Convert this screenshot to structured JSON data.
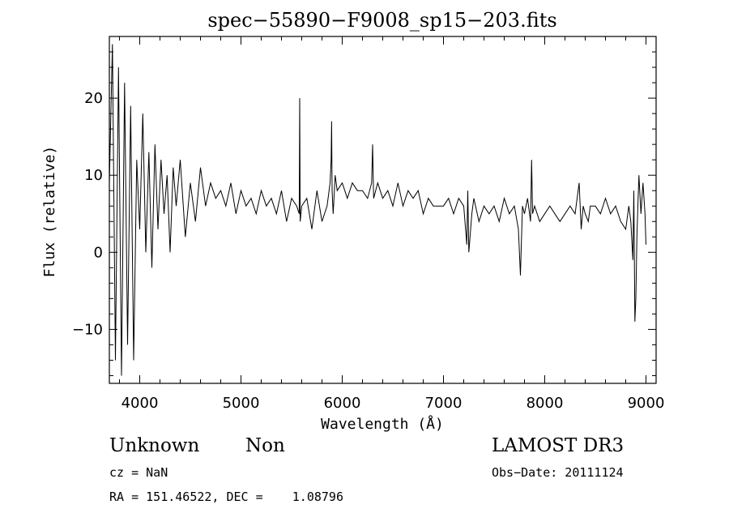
{
  "chart_data": {
    "type": "line",
    "title": "spec−55890−F9008_sp15−203.fits",
    "xlabel": "Wavelength (Å)",
    "ylabel": "Flux (relative)",
    "xlim": [
      3700,
      9100
    ],
    "ylim": [
      -17,
      28
    ],
    "xticks": [
      4000,
      5000,
      6000,
      7000,
      8000,
      9000
    ],
    "xtick_labels": [
      "4000",
      "5000",
      "6000",
      "7000",
      "8000",
      "9000"
    ],
    "yticks": [
      -10,
      0,
      10,
      20
    ],
    "ytick_labels": [
      "−10",
      "0",
      "10",
      "20"
    ],
    "grid": false,
    "series": [
      {
        "name": "flux",
        "x": [
          3700,
          3730,
          3760,
          3790,
          3820,
          3850,
          3880,
          3910,
          3940,
          3970,
          4000,
          4030,
          4060,
          4090,
          4120,
          4150,
          4180,
          4210,
          4240,
          4270,
          4300,
          4330,
          4360,
          4400,
          4450,
          4500,
          4550,
          4600,
          4650,
          4700,
          4750,
          4800,
          4850,
          4900,
          4950,
          5000,
          5050,
          5100,
          5150,
          5200,
          5250,
          5300,
          5350,
          5400,
          5450,
          5500,
          5550,
          5575,
          5580,
          5585,
          5600,
          5650,
          5700,
          5750,
          5800,
          5850,
          5880,
          5890,
          5895,
          5900,
          5910,
          5930,
          5950,
          6000,
          6050,
          6100,
          6150,
          6200,
          6250,
          6290,
          6300,
          6310,
          6350,
          6400,
          6450,
          6500,
          6550,
          6600,
          6650,
          6700,
          6750,
          6800,
          6850,
          6900,
          6950,
          7000,
          7050,
          7100,
          7150,
          7200,
          7230,
          7240,
          7250,
          7280,
          7300,
          7350,
          7400,
          7450,
          7500,
          7550,
          7600,
          7650,
          7700,
          7740,
          7760,
          7780,
          7800,
          7830,
          7860,
          7870,
          7880,
          7900,
          7950,
          8000,
          8050,
          8100,
          8150,
          8200,
          8250,
          8300,
          8340,
          8360,
          8380,
          8400,
          8430,
          8450,
          8500,
          8550,
          8600,
          8650,
          8700,
          8750,
          8800,
          8830,
          8850,
          8870,
          8880,
          8890,
          8900,
          8910,
          8920,
          8930,
          8950,
          8970,
          8990,
          9000
        ],
        "y": [
          9,
          27,
          -14,
          24,
          -16,
          22,
          -12,
          19,
          -14,
          12,
          3,
          18,
          0,
          13,
          -2,
          14,
          3,
          12,
          5,
          10,
          0,
          11,
          6,
          12,
          2,
          9,
          4,
          11,
          6,
          9,
          7,
          8,
          6,
          9,
          5,
          8,
          6,
          7,
          5,
          8,
          6,
          7,
          5,
          8,
          4,
          7,
          6,
          5,
          20,
          4,
          6,
          7,
          3,
          8,
          4,
          6,
          9,
          12,
          17,
          8,
          5,
          10,
          8,
          9,
          7,
          9,
          8,
          8,
          7,
          9,
          14,
          7,
          9,
          7,
          8,
          6,
          9,
          6,
          8,
          7,
          8,
          5,
          7,
          6,
          6,
          6,
          7,
          5,
          7,
          6,
          1,
          8,
          0,
          5,
          7,
          4,
          6,
          5,
          6,
          4,
          7,
          5,
          6,
          3,
          -3,
          6,
          5,
          7,
          4,
          12,
          5,
          6,
          4,
          5,
          6,
          5,
          4,
          5,
          6,
          5,
          9,
          3,
          6,
          5,
          4,
          6,
          6,
          5,
          7,
          5,
          6,
          4,
          3,
          6,
          4,
          -1,
          8,
          -9,
          -6,
          2,
          6,
          10,
          5,
          9,
          5,
          1
        ]
      }
    ]
  },
  "footer": {
    "object_class": "Unknown",
    "subclass": "Non",
    "cz_line": "cz = NaN",
    "coords_line": "RA = 151.46522, DEC =    1.08796",
    "survey": "LAMOST DR3",
    "obs_date_line": "Obs−Date: 20111124"
  }
}
